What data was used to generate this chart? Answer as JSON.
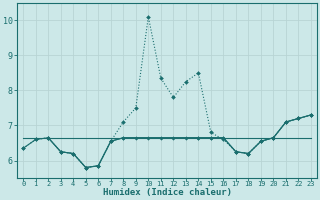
{
  "xlabel": "Humidex (Indice chaleur)",
  "bg_color": "#cce8e8",
  "grid_color": "#b8d4d4",
  "line_color": "#1a6e6e",
  "xlim": [
    -0.5,
    23.5
  ],
  "ylim": [
    5.5,
    10.5
  ],
  "yticks": [
    6,
    7,
    8,
    9,
    10
  ],
  "xticks": [
    0,
    1,
    2,
    3,
    4,
    5,
    6,
    7,
    8,
    9,
    10,
    11,
    12,
    13,
    14,
    15,
    16,
    17,
    18,
    19,
    20,
    21,
    22,
    23
  ],
  "series_dotted": {
    "x": [
      0,
      1,
      2,
      3,
      4,
      5,
      6,
      7,
      8,
      9,
      10,
      11,
      12,
      13,
      14,
      15,
      16,
      17,
      18,
      19,
      20,
      21,
      22,
      23
    ],
    "y": [
      6.35,
      6.6,
      6.65,
      6.25,
      6.2,
      5.8,
      5.85,
      6.55,
      7.1,
      7.5,
      10.1,
      8.35,
      7.8,
      8.25,
      8.5,
      6.8,
      6.6,
      6.25,
      6.2,
      6.55,
      6.65,
      7.1,
      7.2,
      7.3
    ]
  },
  "series_flat": {
    "x": [
      0,
      23
    ],
    "y": [
      6.65,
      6.65
    ]
  },
  "series_solid1": {
    "x": [
      0,
      1,
      2,
      3,
      4,
      5,
      6,
      7,
      8,
      9,
      10,
      11,
      12,
      13,
      14,
      15,
      16,
      17,
      18,
      19,
      20,
      21,
      22,
      23
    ],
    "y": [
      6.35,
      6.6,
      6.65,
      6.25,
      6.2,
      5.8,
      5.85,
      6.55,
      6.65,
      6.65,
      6.65,
      6.65,
      6.65,
      6.65,
      6.65,
      6.65,
      6.65,
      6.25,
      6.2,
      6.55,
      6.65,
      7.1,
      7.2,
      7.3
    ]
  },
  "series_solid2": {
    "x": [
      2,
      3,
      4,
      5,
      6,
      7,
      8,
      14,
      15,
      16,
      17,
      18,
      19,
      20,
      21,
      22,
      23
    ],
    "y": [
      6.65,
      6.25,
      6.2,
      5.8,
      5.85,
      6.55,
      6.65,
      6.65,
      6.65,
      6.65,
      6.25,
      6.2,
      6.55,
      6.65,
      7.1,
      7.2,
      7.3
    ]
  }
}
